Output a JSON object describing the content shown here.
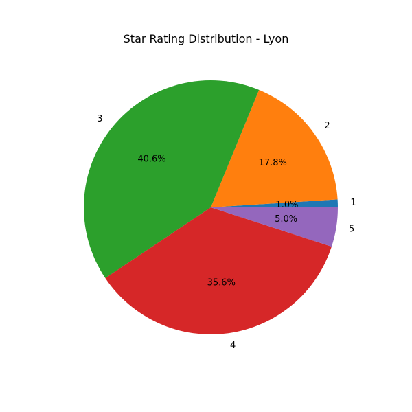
{
  "chart_data": {
    "type": "pie",
    "title": "Star Rating Distribution - Lyon",
    "categories": [
      "1",
      "2",
      "3",
      "4",
      "5"
    ],
    "values": [
      1.0,
      17.8,
      40.6,
      35.6,
      5.0
    ],
    "percent_labels": [
      "1.0%",
      "17.8%",
      "40.6%",
      "35.6%",
      "5.0%"
    ],
    "colors": [
      "#1f77b4",
      "#ff7f0e",
      "#2ca02c",
      "#d62728",
      "#9467bd"
    ],
    "start_angle": 0,
    "direction": "counterclockwise",
    "legend": "none"
  }
}
